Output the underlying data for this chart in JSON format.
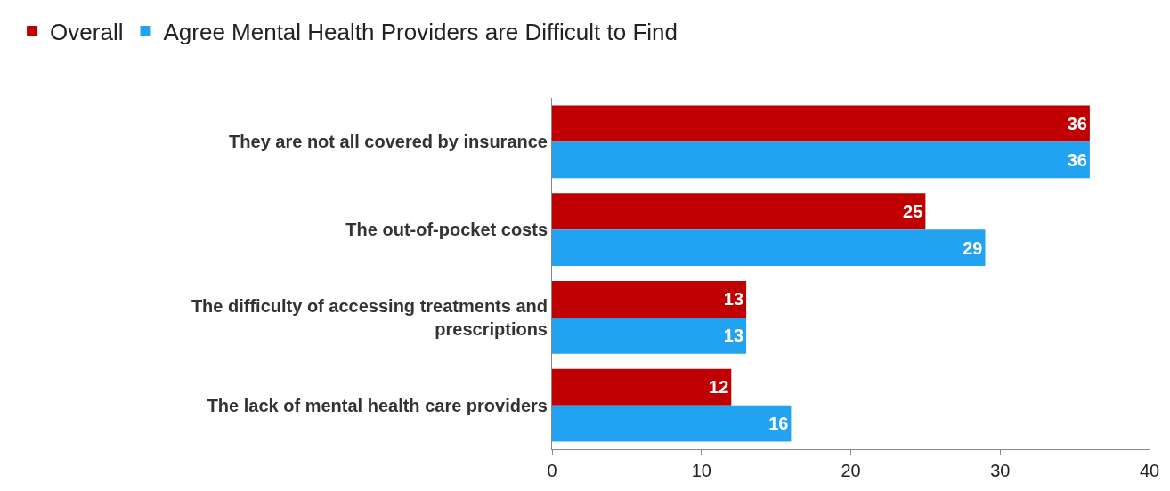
{
  "chart_data": {
    "type": "bar",
    "orientation": "horizontal",
    "categories": [
      "They are not all covered by insurance",
      "The out-of-pocket costs",
      "The difficulty of accessing treatments and prescriptions",
      "The lack of mental health care providers"
    ],
    "series": [
      {
        "name": "Overall",
        "color": "#c00000",
        "values": [
          36,
          25,
          13,
          12
        ]
      },
      {
        "name": "Agree Mental Health Providers are Difficult to Find",
        "color": "#21a3f1",
        "values": [
          36,
          29,
          13,
          16
        ]
      }
    ],
    "xlim": [
      0,
      40
    ],
    "xticks": [
      0,
      10,
      20,
      30,
      40
    ],
    "legend": "top left",
    "data_labels": true
  }
}
